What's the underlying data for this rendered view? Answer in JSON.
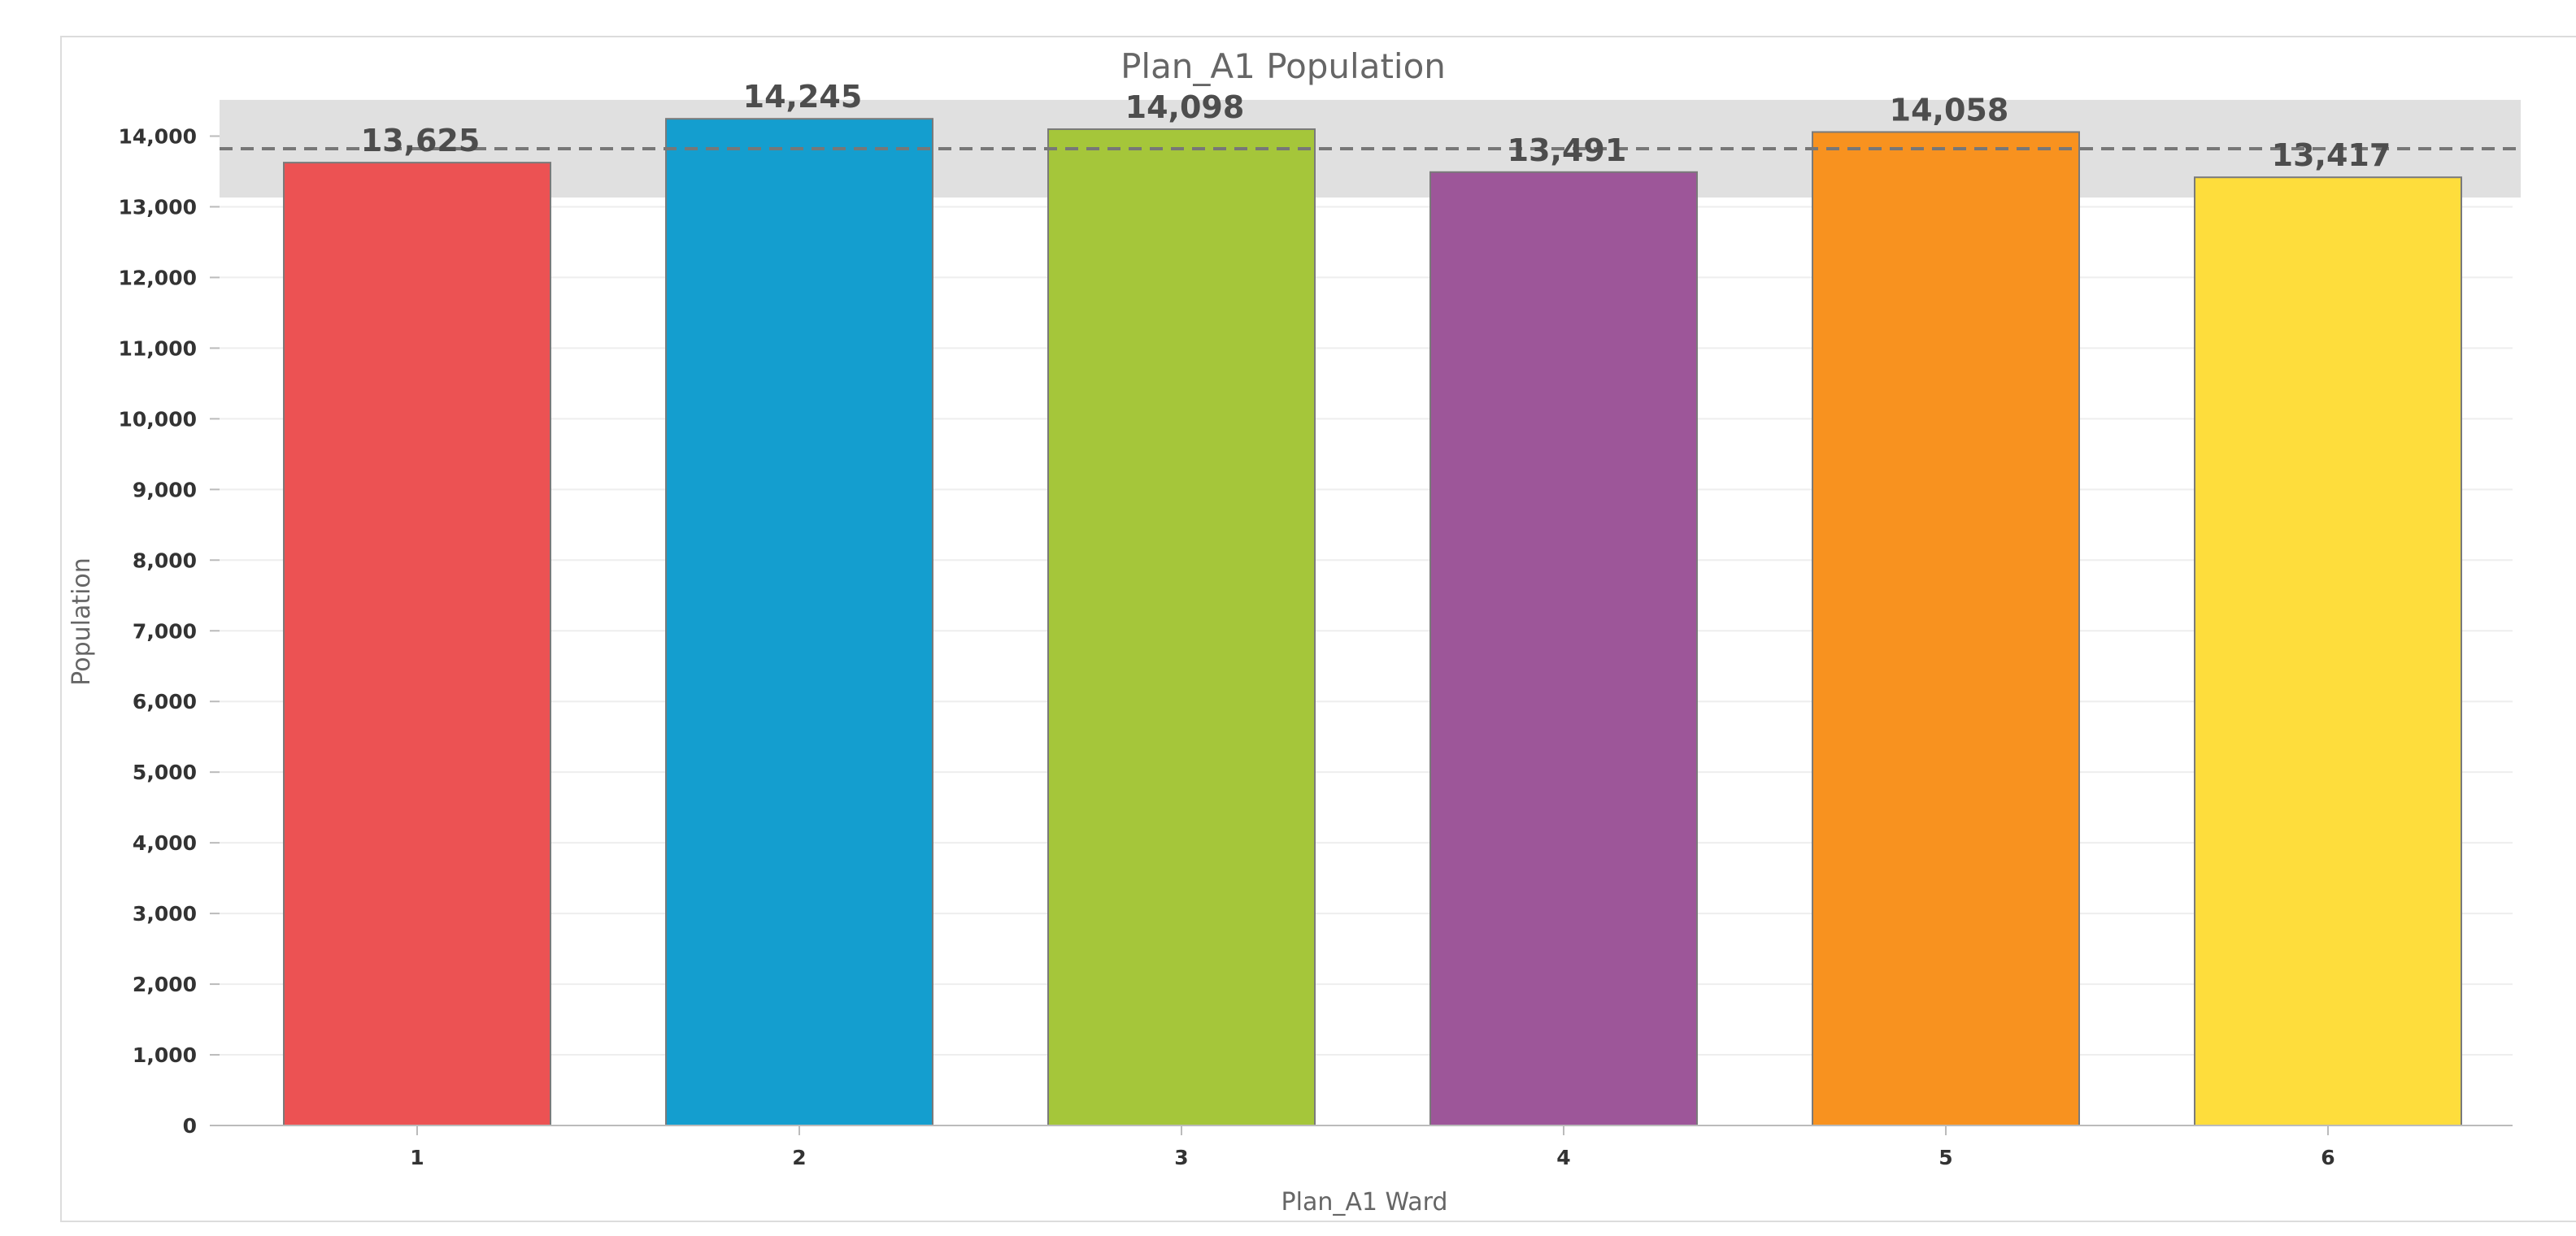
{
  "chart_data": {
    "type": "bar",
    "title": "Plan_A1 Population",
    "xlabel": "Plan_A1 Ward",
    "ylabel": "Population",
    "categories": [
      "1",
      "2",
      "3",
      "4",
      "5",
      "6"
    ],
    "values": [
      13625,
      14245,
      14098,
      13491,
      14058,
      13417
    ],
    "value_labels": [
      "13,625",
      "14,245",
      "14,098",
      "13,491",
      "14,058",
      "13,417"
    ],
    "colors": [
      "#ec5253",
      "#149ecf",
      "#a5c63a",
      "#9d5699",
      "#f8921f",
      "#fedd3c"
    ],
    "ylim": [
      0,
      14000
    ],
    "yticks": [
      0,
      1000,
      2000,
      3000,
      4000,
      5000,
      6000,
      7000,
      8000,
      9000,
      10000,
      11000,
      12000,
      13000,
      14000
    ],
    "ytick_labels": [
      "0",
      "1,000",
      "2,000",
      "3,000",
      "4,000",
      "5,000",
      "6,000",
      "7,000",
      "8,000",
      "9,000",
      "10,000",
      "11,000",
      "12,000",
      "13,000",
      "14,000"
    ],
    "reference_line": 13822,
    "tolerance_band": [
      13131,
      14513
    ],
    "grid": true,
    "legend": "none"
  }
}
